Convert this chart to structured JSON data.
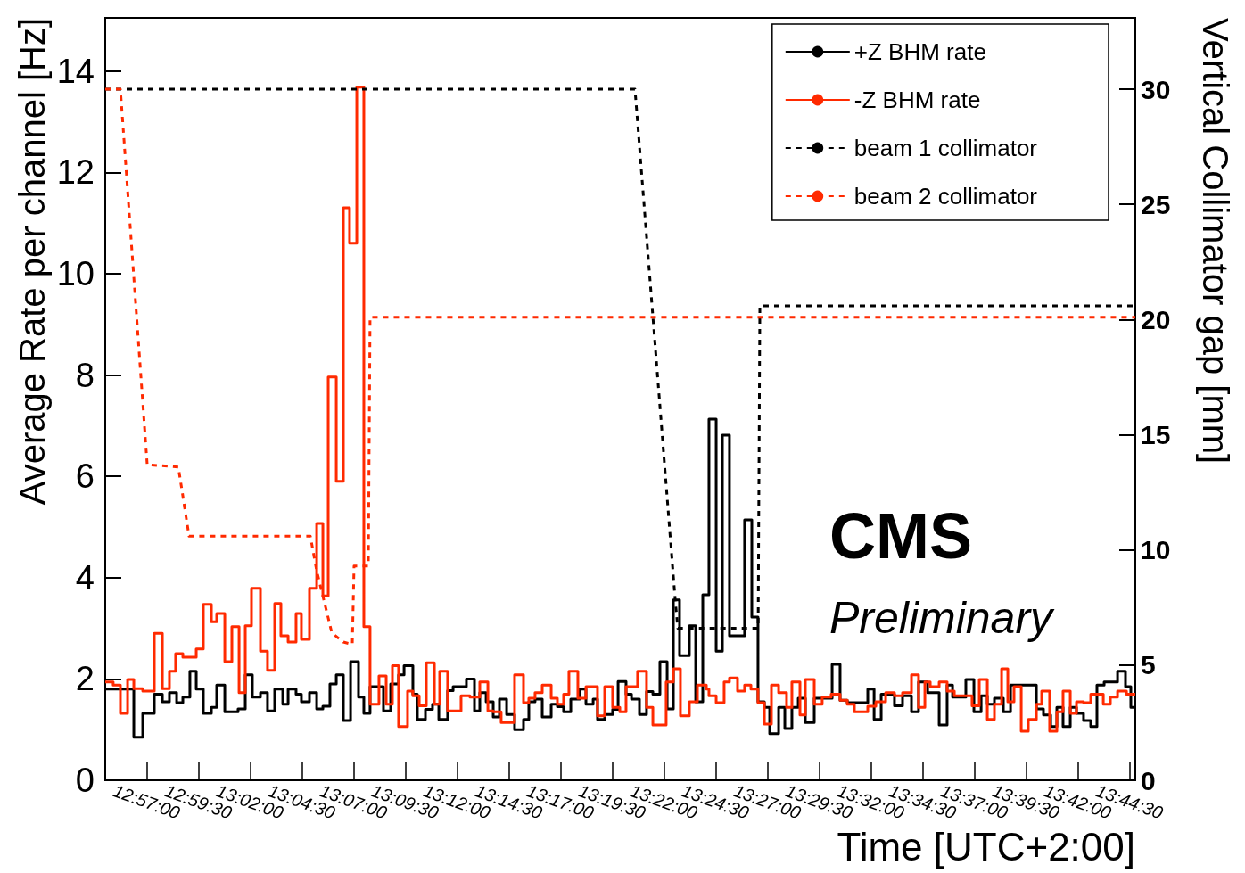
{
  "chart_data": {
    "type": "step",
    "xlabel": "Time [UTC+2:00]",
    "ylabel": "Average Rate per channel [Hz]",
    "y2label": "Vertical Collimator gap [mm]",
    "annotations": [
      "CMS",
      "Preliminary"
    ],
    "xlim": [
      12.9167,
      13.7464
    ],
    "xticks": [
      {
        "value": 12.95,
        "label": "12:57:00"
      },
      {
        "value": 12.9917,
        "label": "12:59:30"
      },
      {
        "value": 13.0333,
        "label": "13:02:00"
      },
      {
        "value": 13.075,
        "label": "13:04:30"
      },
      {
        "value": 13.1167,
        "label": "13:07:00"
      },
      {
        "value": 13.1583,
        "label": "13:09:30"
      },
      {
        "value": 13.2,
        "label": "13:12:00"
      },
      {
        "value": 13.2417,
        "label": "13:14:30"
      },
      {
        "value": 13.2833,
        "label": "13:17:00"
      },
      {
        "value": 13.325,
        "label": "13:19:30"
      },
      {
        "value": 13.3667,
        "label": "13:22:00"
      },
      {
        "value": 13.4083,
        "label": "13:24:30"
      },
      {
        "value": 13.45,
        "label": "13:27:00"
      },
      {
        "value": 13.4917,
        "label": "13:29:30"
      },
      {
        "value": 13.5333,
        "label": "13:32:00"
      },
      {
        "value": 13.575,
        "label": "13:34:30"
      },
      {
        "value": 13.6167,
        "label": "13:37:00"
      },
      {
        "value": 13.6583,
        "label": "13:39:30"
      },
      {
        "value": 13.7,
        "label": "13:42:00"
      },
      {
        "value": 13.7417,
        "label": "13:44:30"
      }
    ],
    "ylim": [
      0,
      15.05
    ],
    "yticks": [
      0,
      2,
      4,
      6,
      8,
      10,
      12,
      14
    ],
    "y2lim": [
      0,
      33.1
    ],
    "y2ticks": [
      0,
      5,
      10,
      15,
      20,
      25,
      30
    ],
    "legend": "top right",
    "marker": "none",
    "series": [
      {
        "name": "+Z BHM rate",
        "color": "#000000",
        "line_style": "solid",
        "x": [
          12.9167,
          12.9397,
          12.9469,
          12.9562,
          12.9627,
          12.9684,
          12.9742,
          12.9792,
          12.9849,
          12.99,
          12.9957,
          13.0022,
          13.0065,
          13.013,
          13.0237,
          13.0295,
          13.0352,
          13.0417,
          13.0474,
          13.0532,
          13.0597,
          13.064,
          13.0704,
          13.0747,
          13.0812,
          13.087,
          13.092,
          13.0977,
          13.1028,
          13.1085,
          13.1143,
          13.1207,
          13.125,
          13.13,
          13.1408,
          13.1466,
          13.153,
          13.1574,
          13.1645,
          13.1681,
          13.1746,
          13.1803,
          13.1854,
          13.1925,
          13.1969,
          13.2076,
          13.2141,
          13.2184,
          13.2235,
          13.2292,
          13.2342,
          13.24,
          13.2464,
          13.2536,
          13.2579,
          13.2629,
          13.2687,
          13.2759,
          13.2809,
          13.2859,
          13.2917,
          13.2989,
          13.3039,
          13.3097,
          13.3132,
          13.319,
          13.3254,
          13.3298,
          13.3362,
          13.3406,
          13.347,
          13.3527,
          13.3578,
          13.3635,
          13.3693,
          13.3743,
          13.3793,
          13.3872,
          13.3923,
          13.398,
          13.403,
          13.4088,
          13.4138,
          13.4195,
          13.4317,
          13.4375,
          13.4425,
          13.4476,
          13.4519,
          13.4591,
          13.4641,
          13.4698,
          13.4749,
          13.4806,
          13.4878,
          13.5022,
          13.5086,
          13.5144,
          13.5309,
          13.536,
          13.5417,
          13.5524,
          13.5589,
          13.5661,
          13.5718,
          13.5791,
          13.5884,
          13.5948,
          13.5992,
          13.6099,
          13.6164,
          13.6222,
          13.6272,
          13.6329,
          13.6401,
          13.6459,
          13.6667,
          13.6724,
          13.6782,
          13.6832,
          13.6882,
          13.694,
          13.699,
          13.7047,
          13.7105,
          13.7155,
          13.7213,
          13.7321,
          13.7385,
          13.7428,
          13.7464
        ],
        "values": [
          1.8,
          0.85,
          1.32,
          1.7,
          1.55,
          1.73,
          1.53,
          1.64,
          2.15,
          1.8,
          1.32,
          1.44,
          1.88,
          1.35,
          1.41,
          2.08,
          1.64,
          1.73,
          1.37,
          1.8,
          1.5,
          1.8,
          1.7,
          1.55,
          1.73,
          1.41,
          1.46,
          1.9,
          2.08,
          1.18,
          2.34,
          1.64,
          1.32,
          1.85,
          1.37,
          1.9,
          2.08,
          2.26,
          1.7,
          1.2,
          1.4,
          1.5,
          1.2,
          1.77,
          1.85,
          2.0,
          1.37,
          1.73,
          1.55,
          1.25,
          1.6,
          1.3,
          1.0,
          1.2,
          1.55,
          1.6,
          1.25,
          1.5,
          1.45,
          1.35,
          1.6,
          1.8,
          1.5,
          1.6,
          1.2,
          1.3,
          1.4,
          1.95,
          1.7,
          1.6,
          1.3,
          1.75,
          1.7,
          2.34,
          1.41,
          3.56,
          2.46,
          3.05,
          1.55,
          3.66,
          7.13,
          2.55,
          6.81,
          2.85,
          5.14,
          3.22,
          1.55,
          1.44,
          0.92,
          1.44,
          1.02,
          1.44,
          1.62,
          1.14,
          1.62,
          2.29,
          1.58,
          1.53,
          1.8,
          1.2,
          1.7,
          1.47,
          1.67,
          1.35,
          1.94,
          1.73,
          1.09,
          1.88,
          1.64,
          1.99,
          1.35,
          1.67,
          1.5,
          1.62,
          1.35,
          1.88,
          1.41,
          1.29,
          1.06,
          1.44,
          1.06,
          1.44,
          1.32,
          1.18,
          1.06,
          1.88,
          1.94,
          2.15,
          1.85,
          1.44,
          1.44
        ]
      },
      {
        "name": "-Z BHM rate",
        "color": "#ff2a00",
        "line_style": "solid",
        "x": [
          12.9167,
          12.9231,
          12.9289,
          12.9347,
          12.9397,
          12.9469,
          12.9562,
          12.9627,
          12.9684,
          12.9734,
          12.9792,
          12.99,
          12.9957,
          13.0022,
          13.0065,
          13.013,
          13.0187,
          13.0245,
          13.0295,
          13.0345,
          13.0417,
          13.0474,
          13.0532,
          13.0582,
          13.064,
          13.0704,
          13.0747,
          13.0812,
          13.087,
          13.092,
          13.0963,
          13.1028,
          13.1085,
          13.1135,
          13.1193,
          13.125,
          13.13,
          13.1372,
          13.143,
          13.148,
          13.153,
          13.1602,
          13.1645,
          13.1696,
          13.1753,
          13.1818,
          13.1861,
          13.1925,
          13.2033,
          13.2105,
          13.2184,
          13.2249,
          13.2292,
          13.2356,
          13.2464,
          13.2536,
          13.2579,
          13.2629,
          13.2687,
          13.2759,
          13.2809,
          13.2859,
          13.2902,
          13.2974,
          13.3039,
          13.3132,
          13.319,
          13.3254,
          13.3312,
          13.3362,
          13.3455,
          13.3527,
          13.3578,
          13.3685,
          13.3743,
          13.38,
          13.3872,
          13.3937,
          13.4009,
          13.403,
          13.4088,
          13.4152,
          13.4195,
          13.426,
          13.4317,
          13.4368,
          13.4425,
          13.4476,
          13.4533,
          13.4591,
          13.4655,
          13.4698,
          13.4763,
          13.4806,
          13.4878,
          13.4942,
          13.5014,
          13.5086,
          13.5144,
          13.5201,
          13.5309,
          13.5374,
          13.5453,
          13.5524,
          13.5589,
          13.5661,
          13.5718,
          13.5769,
          13.5812,
          13.5884,
          13.5948,
          13.6006,
          13.6149,
          13.6207,
          13.6272,
          13.6329,
          13.6387,
          13.6437,
          13.6487,
          13.6545,
          13.6602,
          13.6667,
          13.671,
          13.6774,
          13.6832,
          13.6882,
          13.694,
          13.699,
          13.7047,
          13.7105,
          13.7206,
          13.7263,
          13.7321,
          13.7393,
          13.7464
        ],
        "values": [
          1.94,
          1.88,
          1.32,
          1.99,
          1.81,
          1.76,
          2.9,
          1.81,
          2.15,
          2.5,
          2.43,
          2.59,
          3.47,
          3.13,
          3.29,
          2.34,
          3.03,
          1.73,
          3.05,
          3.79,
          2.55,
          2.17,
          3.49,
          2.85,
          2.73,
          3.29,
          2.78,
          3.79,
          5.07,
          3.64,
          7.96,
          5.9,
          11.3,
          10.6,
          13.68,
          3.03,
          1.5,
          2.06,
          1.5,
          2.26,
          1.06,
          1.76,
          1.67,
          1.47,
          2.32,
          1.5,
          2.15,
          1.37,
          1.67,
          1.64,
          1.94,
          1.37,
          1.35,
          1.14,
          2.08,
          1.53,
          1.62,
          1.73,
          1.88,
          1.62,
          1.5,
          1.7,
          2.15,
          1.62,
          1.85,
          1.27,
          1.85,
          1.44,
          1.35,
          1.85,
          2.15,
          1.44,
          1.09,
          1.94,
          2.2,
          1.27,
          1.55,
          1.88,
          1.8,
          1.67,
          1.53,
          1.94,
          2.02,
          1.76,
          1.88,
          1.8,
          1.53,
          1.11,
          1.88,
          1.73,
          1.44,
          1.94,
          1.29,
          1.99,
          1.5,
          1.64,
          1.7,
          1.58,
          1.5,
          1.35,
          1.46,
          1.55,
          1.73,
          1.67,
          1.73,
          2.08,
          1.44,
          1.94,
          1.85,
          1.94,
          1.76,
          1.67,
          1.47,
          1.99,
          1.2,
          1.5,
          2.2,
          1.55,
          1.85,
          0.97,
          1.2,
          1.5,
          1.76,
          0.97,
          1.35,
          1.76,
          1.32,
          1.55,
          1.53,
          1.7,
          1.5,
          1.64,
          1.76,
          1.7,
          1.7
        ]
      },
      {
        "name": "beam 1 collimator",
        "type": "line",
        "axis": "y2",
        "color": "#000000",
        "line_style": "dashed",
        "x": [
          12.9167,
          13.3434,
          13.3757,
          13.3779,
          13.4426,
          13.444,
          13.7464
        ],
        "values": [
          30,
          30,
          7.9,
          6.6,
          6.6,
          20.6,
          20.6
        ]
      },
      {
        "name": "beam 2 collimator",
        "type": "line",
        "axis": "y2",
        "color": "#ff2a00",
        "line_style": "dashed",
        "x": [
          12.9167,
          12.9289,
          12.9505,
          12.9756,
          12.9842,
          13.0819,
          13.087,
          13.092,
          13.0992,
          13.1085,
          13.1157,
          13.1171,
          13.1286,
          13.13,
          13.7464
        ],
        "values": [
          30,
          30,
          13.7,
          13.6,
          10.6,
          10.6,
          9.1,
          8.0,
          6.4,
          6.0,
          5.9,
          9.3,
          9.3,
          20.1,
          20.1
        ]
      }
    ]
  }
}
